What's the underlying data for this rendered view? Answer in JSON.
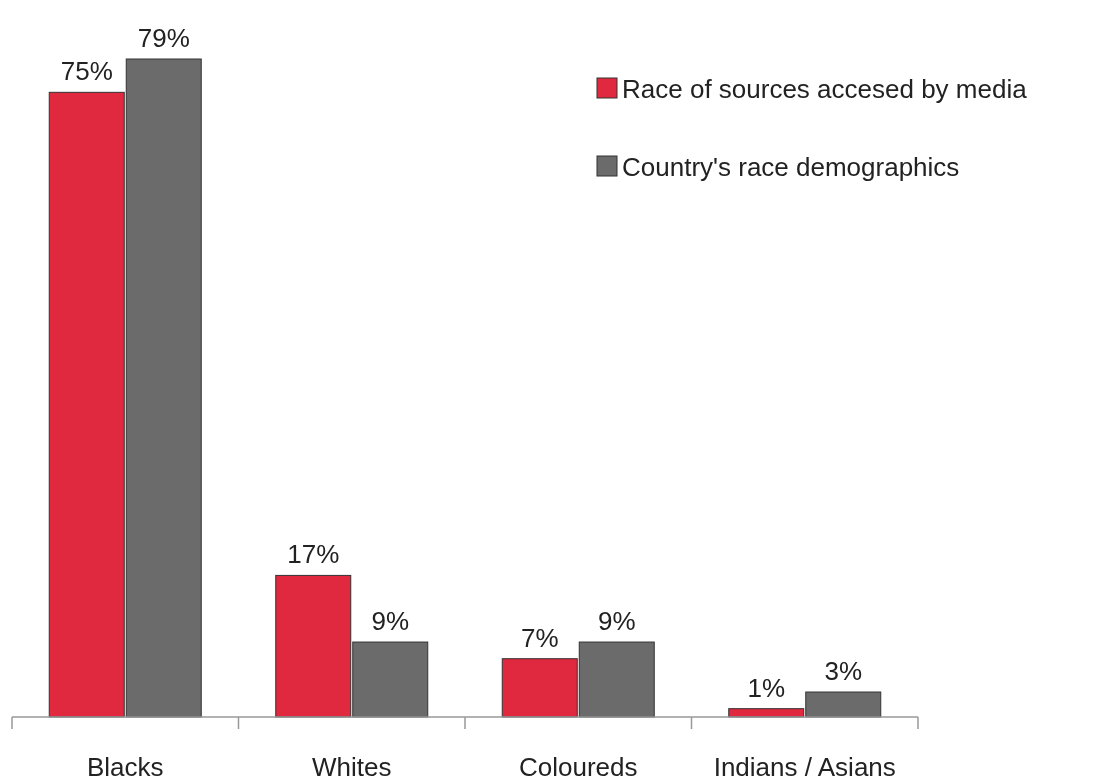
{
  "chart_data": {
    "type": "bar",
    "categories": [
      "Blacks",
      "Whites",
      "Coloureds",
      "Indians / Asians"
    ],
    "series": [
      {
        "name": "Race of sources accesed by media",
        "color": "#e0293f",
        "values": [
          75,
          17,
          7,
          1
        ],
        "value_labels": [
          "75%",
          "17%",
          "7%",
          "1%"
        ]
      },
      {
        "name": "Country's race demographics",
        "color": "#6b6b6b",
        "values": [
          79,
          9,
          9,
          3
        ],
        "value_labels": [
          "79%",
          "9%",
          "9%",
          "3%"
        ]
      }
    ],
    "legend": "top right"
  }
}
